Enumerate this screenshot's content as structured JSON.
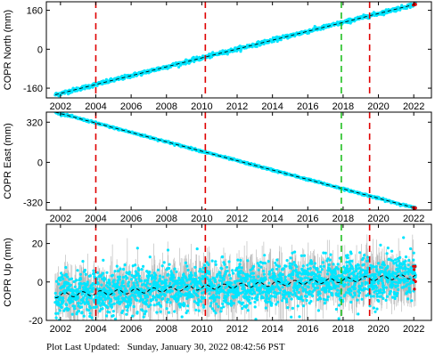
{
  "footer": {
    "label": "Plot Last Updated:",
    "timestamp": "Sunday, January 30, 2022 08:42:56 PST"
  },
  "colors": {
    "data": "#00e5ff",
    "error_bars": "#b4b4b4",
    "model": "#000000",
    "event_red": "#e00000",
    "event_green": "#20c020",
    "recent": "#e00000"
  },
  "chart_data": [
    {
      "type": "scatter",
      "ylabel": "COPR North (mm)",
      "xlim": [
        2001.2,
        2023.0
      ],
      "ylim": [
        -200,
        195
      ],
      "yticks": [
        -160,
        0,
        160
      ],
      "xticks": [
        2002,
        2004,
        2006,
        2008,
        2010,
        2012,
        2014,
        2016,
        2018,
        2020,
        2022
      ],
      "trend": {
        "start": [
          2001.7,
          -187
        ],
        "end": [
          2022.1,
          185
        ]
      },
      "scatter_mm": 4,
      "event_lines_red": [
        2004.0,
        2010.2,
        2019.5
      ],
      "event_lines_green": [
        2017.9
      ]
    },
    {
      "type": "scatter",
      "ylabel": "COPR East (mm)",
      "xlim": [
        2001.2,
        2023.0
      ],
      "ylim": [
        -380,
        400
      ],
      "yticks": [
        -320,
        0,
        320
      ],
      "xticks": [
        2002,
        2004,
        2006,
        2008,
        2010,
        2012,
        2014,
        2016,
        2018,
        2020,
        2022
      ],
      "trend": {
        "start": [
          2001.7,
          400
        ],
        "end": [
          2022.1,
          -365
        ]
      },
      "scatter_mm": 4,
      "event_lines_red": [
        2004.0,
        2010.2,
        2019.5
      ],
      "event_lines_green": [
        2017.9
      ]
    },
    {
      "type": "scatter",
      "ylabel": "COPR Up (mm)",
      "xlim": [
        2001.2,
        2023.0
      ],
      "ylim": [
        -20,
        30
      ],
      "yticks": [
        -20,
        0,
        20
      ],
      "xticks": [
        2002,
        2004,
        2006,
        2008,
        2010,
        2012,
        2014,
        2016,
        2018,
        2020,
        2022
      ],
      "trend": {
        "start": [
          2001.7,
          -7
        ],
        "end": [
          2022.1,
          3
        ]
      },
      "seasonal_amplitude_mm": 1.2,
      "scatter_mm": 6,
      "error_bar_mm": 7,
      "event_lines_red": [
        2004.0,
        2010.2,
        2019.5
      ],
      "event_lines_green": [
        2017.9
      ]
    }
  ]
}
